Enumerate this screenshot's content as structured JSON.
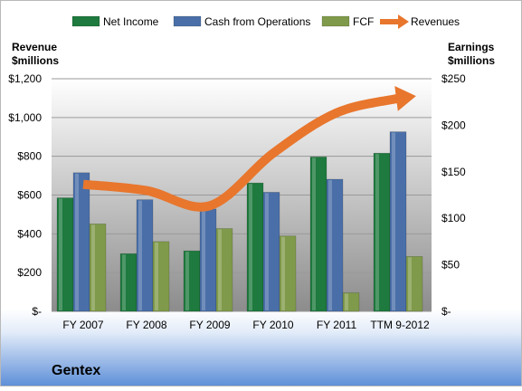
{
  "chart_data": {
    "type": "bar",
    "title": "Gentex",
    "categories": [
      "FY 2007",
      "FY 2008",
      "FY 2009",
      "FY 2010",
      "FY 2011",
      "TTM 9-2012"
    ],
    "left_axis": {
      "label_line1": "Revenue",
      "label_line2": "$millions",
      "ylim": [
        0,
        1200
      ],
      "ticks": [
        0,
        200,
        400,
        600,
        800,
        1000,
        1200
      ],
      "tick_labels": [
        "$-",
        "$200",
        "$400",
        "$600",
        "$800",
        "$1,000",
        "$1,200"
      ]
    },
    "right_axis": {
      "label_line1": "Earnings",
      "label_line2": "$millions",
      "ylim": [
        0,
        250
      ],
      "ticks": [
        0,
        50,
        100,
        150,
        200,
        250
      ],
      "tick_labels": [
        "$-",
        "$50",
        "$100",
        "$150",
        "$200",
        "$250"
      ]
    },
    "series": [
      {
        "name": "Net Income",
        "type": "bar",
        "axis": "right",
        "color": "#1e7a3e",
        "values": [
          122,
          62,
          65,
          138,
          166,
          170
        ]
      },
      {
        "name": "Cash from Operations",
        "type": "bar",
        "axis": "right",
        "color": "#4a6fa8",
        "values": [
          149,
          120,
          110,
          128,
          142,
          193
        ]
      },
      {
        "name": "FCF",
        "type": "bar",
        "axis": "right",
        "color": "#7f9a4a",
        "values": [
          94,
          75,
          89,
          81,
          20,
          59
        ]
      },
      {
        "name": "Revenues",
        "type": "line",
        "axis": "left",
        "color": "#e8762d",
        "values": [
          655,
          623,
          545,
          816,
          1024,
          1100
        ]
      }
    ],
    "legend_position": "top",
    "grid": true
  }
}
